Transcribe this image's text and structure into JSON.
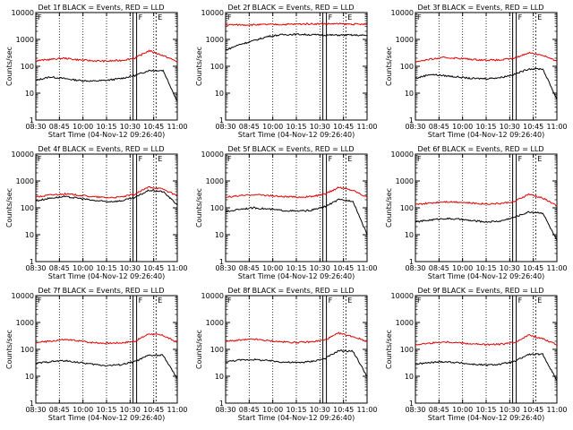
{
  "figure": {
    "colors": {
      "events": "#000000",
      "lld": "#e00000",
      "axis": "#000000",
      "background": "#ffffff"
    },
    "xtick_labels": [
      "08:30",
      "08:45",
      "10:00",
      "10:15",
      "10:30",
      "10:45",
      "11:00"
    ],
    "ytick_labels": [
      "1",
      "10",
      "100",
      "1000",
      "10000"
    ],
    "ylabel": "Counts/sec",
    "xlabel": "Start Time (04-Nov-12 09:26:40)",
    "marker_labels": [
      "F",
      "F",
      "E"
    ]
  },
  "chart_data": [
    {
      "type": "line",
      "title": "Det 1f BLACK = Events, RED = LLD",
      "xlabel": "Start Time (04-Nov-12 09:26:40)",
      "ylabel": "Counts/sec",
      "yscale": "log",
      "ylim": [
        1,
        10000
      ],
      "x": [
        0,
        0.1,
        0.2,
        0.3,
        0.4,
        0.5,
        0.6,
        0.7,
        0.8,
        0.9,
        1.0
      ],
      "series": [
        {
          "name": "Events",
          "color": "#000000",
          "values": [
            30,
            40,
            35,
            30,
            28,
            30,
            35,
            45,
            70,
            70,
            5
          ]
        },
        {
          "name": "LLD",
          "color": "#e00000",
          "values": [
            160,
            180,
            200,
            175,
            160,
            155,
            165,
            200,
            380,
            250,
            150
          ]
        }
      ]
    },
    {
      "type": "line",
      "title": "Det 2f BLACK = Events, RED = LLD",
      "xlabel": "Start Time (04-Nov-12 09:26:40)",
      "ylabel": "Counts/sec",
      "yscale": "log",
      "ylim": [
        1,
        10000
      ],
      "x": [
        0,
        0.1,
        0.2,
        0.3,
        0.4,
        0.5,
        0.6,
        0.7,
        0.8,
        0.9,
        1.0
      ],
      "series": [
        {
          "name": "Events",
          "color": "#000000",
          "values": [
            400,
            650,
            900,
            1300,
            1500,
            1550,
            1500,
            1450,
            1450,
            1450,
            1400
          ]
        },
        {
          "name": "LLD",
          "color": "#e00000",
          "values": [
            3500,
            3500,
            3500,
            3600,
            3600,
            3700,
            3800,
            3800,
            3800,
            3700,
            3600
          ]
        }
      ]
    },
    {
      "type": "line",
      "title": "Det 3f BLACK = Events, RED = LLD",
      "xlabel": "Start Time (04-Nov-12 09:26:40)",
      "ylabel": "Counts/sec",
      "yscale": "log",
      "ylim": [
        1,
        10000
      ],
      "x": [
        0,
        0.1,
        0.2,
        0.3,
        0.4,
        0.5,
        0.6,
        0.7,
        0.8,
        0.9,
        1.0
      ],
      "series": [
        {
          "name": "Events",
          "color": "#000000",
          "values": [
            35,
            50,
            45,
            40,
            35,
            35,
            38,
            50,
            80,
            80,
            6
          ]
        },
        {
          "name": "LLD",
          "color": "#e00000",
          "values": [
            150,
            180,
            210,
            200,
            180,
            170,
            170,
            200,
            320,
            260,
            150
          ]
        }
      ]
    },
    {
      "type": "line",
      "title": "Det 4f BLACK = Events, RED = LLD",
      "xlabel": "Start Time (04-Nov-12 09:26:40)",
      "ylabel": "Counts/sec",
      "yscale": "log",
      "ylim": [
        1,
        10000
      ],
      "x": [
        0,
        0.1,
        0.2,
        0.3,
        0.4,
        0.5,
        0.6,
        0.7,
        0.8,
        0.9,
        1.0
      ],
      "series": [
        {
          "name": "Events",
          "color": "#000000",
          "values": [
            180,
            230,
            260,
            230,
            190,
            170,
            180,
            240,
            450,
            400,
            130
          ]
        },
        {
          "name": "LLD",
          "color": "#e00000",
          "values": [
            250,
            300,
            330,
            300,
            260,
            240,
            250,
            320,
            600,
            500,
            280
          ]
        }
      ]
    },
    {
      "type": "line",
      "title": "Det 5f BLACK = Events, RED = LLD",
      "xlabel": "Start Time (04-Nov-12 09:26:40)",
      "ylabel": "Counts/sec",
      "yscale": "log",
      "ylim": [
        1,
        10000
      ],
      "x": [
        0,
        0.1,
        0.2,
        0.3,
        0.4,
        0.5,
        0.6,
        0.7,
        0.8,
        0.9,
        1.0
      ],
      "series": [
        {
          "name": "Events",
          "color": "#000000",
          "values": [
            70,
            90,
            100,
            90,
            80,
            75,
            80,
            110,
            200,
            180,
            10
          ]
        },
        {
          "name": "LLD",
          "color": "#e00000",
          "values": [
            250,
            280,
            310,
            290,
            260,
            250,
            260,
            320,
            580,
            450,
            250
          ]
        }
      ]
    },
    {
      "type": "line",
      "title": "Det 6f BLACK = Events, RED = LLD",
      "xlabel": "Start Time (04-Nov-12 09:26:40)",
      "ylabel": "Counts/sec",
      "yscale": "log",
      "ylim": [
        1,
        10000
      ],
      "x": [
        0,
        0.1,
        0.2,
        0.3,
        0.4,
        0.5,
        0.6,
        0.7,
        0.8,
        0.9,
        1.0
      ],
      "series": [
        {
          "name": "Events",
          "color": "#000000",
          "values": [
            30,
            35,
            40,
            38,
            33,
            30,
            32,
            45,
            70,
            65,
            6
          ]
        },
        {
          "name": "LLD",
          "color": "#e00000",
          "values": [
            130,
            150,
            170,
            165,
            150,
            140,
            145,
            170,
            320,
            230,
            120
          ]
        }
      ]
    },
    {
      "type": "line",
      "title": "Det 7f BLACK = Events, RED = LLD",
      "xlabel": "Start Time (04-Nov-12 09:26:40)",
      "ylabel": "Counts/sec",
      "yscale": "log",
      "ylim": [
        1,
        10000
      ],
      "x": [
        0,
        0.1,
        0.2,
        0.3,
        0.4,
        0.5,
        0.6,
        0.7,
        0.8,
        0.9,
        1.0
      ],
      "series": [
        {
          "name": "Events",
          "color": "#000000",
          "values": [
            30,
            35,
            38,
            33,
            28,
            25,
            27,
            35,
            60,
            60,
            8
          ]
        },
        {
          "name": "LLD",
          "color": "#e00000",
          "values": [
            180,
            200,
            230,
            210,
            180,
            170,
            175,
            200,
            380,
            330,
            180
          ]
        }
      ]
    },
    {
      "type": "line",
      "title": "Det 8f BLACK = Events, RED = LLD",
      "xlabel": "Start Time (04-Nov-12 09:26:40)",
      "ylabel": "Counts/sec",
      "yscale": "log",
      "ylim": [
        1,
        10000
      ],
      "x": [
        0,
        0.1,
        0.2,
        0.3,
        0.4,
        0.5,
        0.6,
        0.7,
        0.8,
        0.9,
        1.0
      ],
      "series": [
        {
          "name": "Events",
          "color": "#000000",
          "values": [
            35,
            40,
            42,
            38,
            34,
            32,
            35,
            45,
            90,
            85,
            10
          ]
        },
        {
          "name": "LLD",
          "color": "#e00000",
          "values": [
            200,
            220,
            240,
            210,
            190,
            180,
            190,
            220,
            400,
            300,
            200
          ]
        }
      ]
    },
    {
      "type": "line",
      "title": "Det 9f BLACK = Events, RED = LLD",
      "xlabel": "Start Time (04-Nov-12 09:26:40)",
      "ylabel": "Counts/sec",
      "yscale": "log",
      "ylim": [
        1,
        10000
      ],
      "x": [
        0,
        0.1,
        0.2,
        0.3,
        0.4,
        0.5,
        0.6,
        0.7,
        0.8,
        0.9,
        1.0
      ],
      "series": [
        {
          "name": "Events",
          "color": "#000000",
          "values": [
            28,
            32,
            35,
            32,
            28,
            26,
            28,
            35,
            65,
            65,
            7
          ]
        },
        {
          "name": "LLD",
          "color": "#e00000",
          "values": [
            150,
            170,
            190,
            180,
            160,
            150,
            155,
            180,
            340,
            250,
            150
          ]
        }
      ]
    }
  ]
}
